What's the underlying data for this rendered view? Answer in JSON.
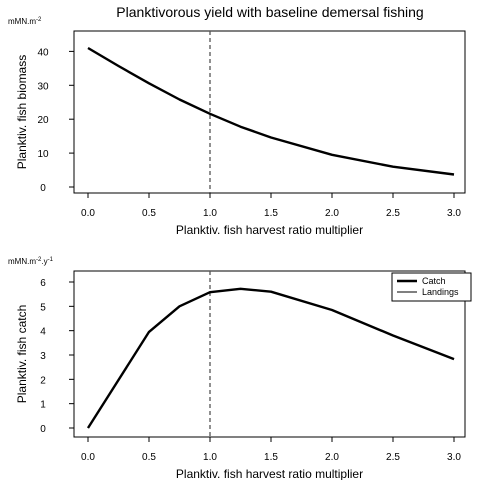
{
  "title": "Planktivorous yield with baseline demersal fishing",
  "chart_data": [
    {
      "type": "line",
      "xlabel": "Planktiv. fish harvest ratio multiplier",
      "ylabel": "Planktiv. fish biomass",
      "unit": "mMN.m",
      "unit_sup": "-2",
      "unit_sup2": "",
      "xlim": [
        0,
        3
      ],
      "ylim": [
        0,
        41
      ],
      "x_ticks": [
        "0.0",
        "0.5",
        "1.0",
        "1.5",
        "2.0",
        "2.5",
        "3.0"
      ],
      "y_ticks": [
        "0",
        "10",
        "20",
        "30",
        "40"
      ],
      "reference_x": 1.0,
      "grid": false,
      "series": [
        {
          "x": [
            0,
            0.25,
            0.5,
            0.75,
            1.0,
            1.25,
            1.5,
            2.0,
            2.5,
            3.0
          ],
          "y": [
            41,
            35.7,
            30.6,
            25.8,
            21.6,
            17.8,
            14.6,
            9.5,
            6.0,
            3.7
          ]
        }
      ]
    },
    {
      "type": "line",
      "xlabel": "Planktiv. fish harvest ratio multiplier",
      "ylabel": "Planktiv. fish catch",
      "unit": "mMN.m",
      "unit_sup": "-2",
      "unit_mid": ".y",
      "unit_sup2": "-1",
      "xlim": [
        0,
        3
      ],
      "ylim": [
        0,
        6
      ],
      "x_ticks": [
        "0.0",
        "0.5",
        "1.0",
        "1.5",
        "2.0",
        "2.5",
        "3.0"
      ],
      "y_ticks": [
        "0",
        "1",
        "2",
        "3",
        "4",
        "5",
        "6"
      ],
      "reference_x": 1.0,
      "grid": false,
      "legend_placement": "top-right",
      "series": [
        {
          "name": "Catch",
          "x": [
            0,
            0.5,
            0.75,
            1.0,
            1.25,
            1.5,
            2.0,
            2.5,
            3.0
          ],
          "y": [
            0,
            3.95,
            5.0,
            5.58,
            5.72,
            5.6,
            4.85,
            3.8,
            2.83
          ]
        },
        {
          "name": "Landings",
          "x": [
            0,
            0.5,
            0.75,
            1.0,
            1.25,
            1.5,
            2.0,
            2.5,
            3.0
          ],
          "y": [
            0,
            3.95,
            5.0,
            5.58,
            5.72,
            5.6,
            4.85,
            3.8,
            2.83
          ]
        }
      ]
    }
  ]
}
